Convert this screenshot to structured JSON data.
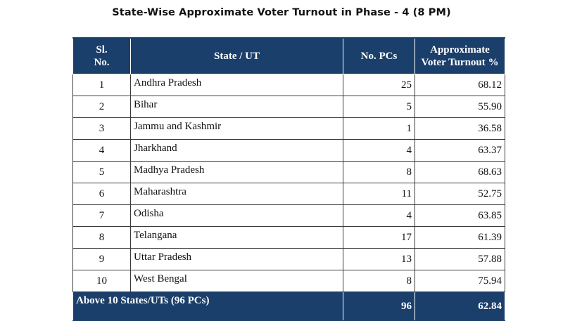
{
  "title": "State-Wise Approximate Voter Turnout in Phase - 4 (8 PM)",
  "table": {
    "headers": {
      "sl_line1": "Sl.",
      "sl_line2": "No.",
      "state": "State / UT",
      "pcs": "No. PCs",
      "turnout_line1": "Approximate",
      "turnout_line2": "Voter Turnout %"
    },
    "rows": [
      {
        "sl": "1",
        "state": "Andhra Pradesh",
        "pcs": "25",
        "turnout": "68.12"
      },
      {
        "sl": "2",
        "state": "Bihar",
        "pcs": "5",
        "turnout": "55.90"
      },
      {
        "sl": "3",
        "state": "Jammu and Kashmir",
        "pcs": "1",
        "turnout": "36.58"
      },
      {
        "sl": "4",
        "state": "Jharkhand",
        "pcs": "4",
        "turnout": "63.37"
      },
      {
        "sl": "5",
        "state": "Madhya Pradesh",
        "pcs": "8",
        "turnout": "68.63"
      },
      {
        "sl": "6",
        "state": "Maharashtra",
        "pcs": "11",
        "turnout": "52.75"
      },
      {
        "sl": "7",
        "state": "Odisha",
        "pcs": "4",
        "turnout": "63.85"
      },
      {
        "sl": "8",
        "state": "Telangana",
        "pcs": "17",
        "turnout": "61.39"
      },
      {
        "sl": "9",
        "state": "Uttar Pradesh",
        "pcs": "13",
        "turnout": "57.88"
      },
      {
        "sl": "10",
        "state": "West Bengal",
        "pcs": "8",
        "turnout": "75.94"
      }
    ],
    "total": {
      "label": "Above 10 States/UTs (96 PCs)",
      "pcs": "96",
      "turnout": "62.84"
    }
  },
  "colors": {
    "header_bg": "#1b3f6b",
    "header_text": "#ffffff"
  }
}
